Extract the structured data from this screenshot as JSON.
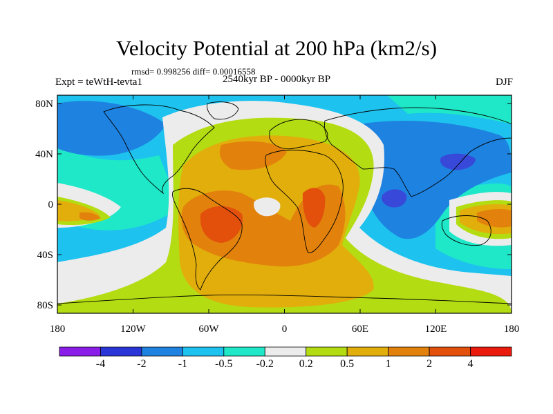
{
  "title": "Velocity Potential at 200 hPa (km2/s)",
  "stats": "rmsd= 0.998256 diff= 0.00016558",
  "expt": "Expt = teWtH-tevta1",
  "period": "2540kyr BP - 0000kyr BP",
  "season": "DJF",
  "axes": {
    "lat_labels": [
      "80N",
      "40N",
      "0",
      "40S",
      "80S"
    ],
    "lon_labels": [
      "180",
      "120W",
      "60W",
      "0",
      "60E",
      "120E",
      "180"
    ]
  },
  "colorbar": {
    "labels": [
      "-4",
      "-2",
      "-1",
      "-0.5",
      "-0.2",
      "0.2",
      "0.5",
      "1",
      "2",
      "4"
    ],
    "colors": [
      "#8a1ee8",
      "#2a35d8",
      "#1e82e0",
      "#1ec2ee",
      "#1ee8c8",
      "#ececec",
      "#b4dc12",
      "#e2ae0c",
      "#e2820c",
      "#e2500c",
      "#ea1a0c"
    ]
  },
  "colors": {
    "deep_blue": "#3848d8",
    "mid_blue": "#1e82e0",
    "light_blue": "#1ec2ee",
    "cyan": "#1ee8c8",
    "neutral": "#ececec",
    "lime": "#b4dc12",
    "gold": "#e2ae0c",
    "orange": "#e2820c",
    "red_orange": "#e2500c"
  }
}
